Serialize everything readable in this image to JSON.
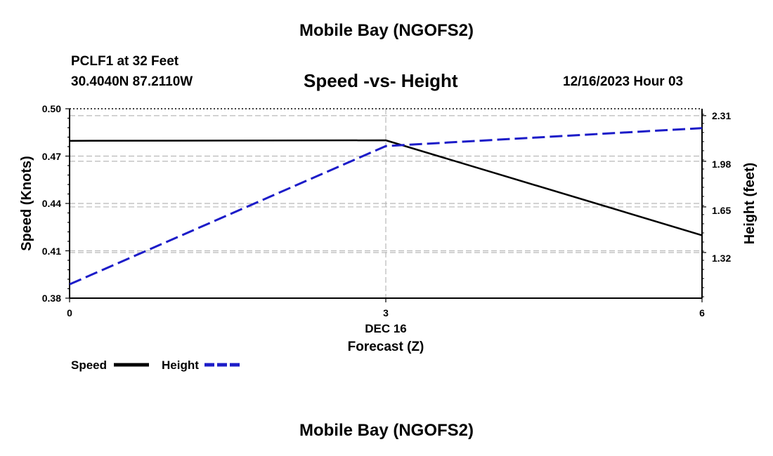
{
  "header": {
    "title": "Mobile Bay (NGOFS2)",
    "station": "PCLF1 at 32 Feet",
    "coords": "30.4040N  87.2110W",
    "date": "12/16/2023 Hour 03"
  },
  "footer": {
    "title": "Mobile Bay (NGOFS2)"
  },
  "chart_data": {
    "type": "line",
    "title": "Speed -vs- Height",
    "xlabel": "Forecast (Z)",
    "x_date_label": "DEC 16",
    "ylabel_left": "Speed (Knots)",
    "ylabel_right": "Height (feet)",
    "x": [
      0,
      3,
      6
    ],
    "x_ticks": [
      "0",
      "3",
      "6"
    ],
    "xlim": [
      0,
      6
    ],
    "y_left_ticks": [
      "0.50",
      "0.47",
      "0.44",
      "0.41",
      "0.38"
    ],
    "y_left_lim": [
      0.38,
      0.5
    ],
    "y_right_ticks": [
      "2.31",
      "1.98",
      "1.65",
      "1.32"
    ],
    "y_right_lim": [
      0.99,
      2.36
    ],
    "grid": true,
    "legend_position": "bottom-left",
    "series": [
      {
        "name": "Speed",
        "axis": "left",
        "color": "#000000",
        "dashed": false,
        "values": [
          0.4797,
          0.48,
          0.4198
        ]
      },
      {
        "name": "Height",
        "axis": "right",
        "color": "#1c1cc8",
        "dashed": true,
        "values": [
          1.09,
          2.09,
          2.22
        ]
      }
    ]
  }
}
